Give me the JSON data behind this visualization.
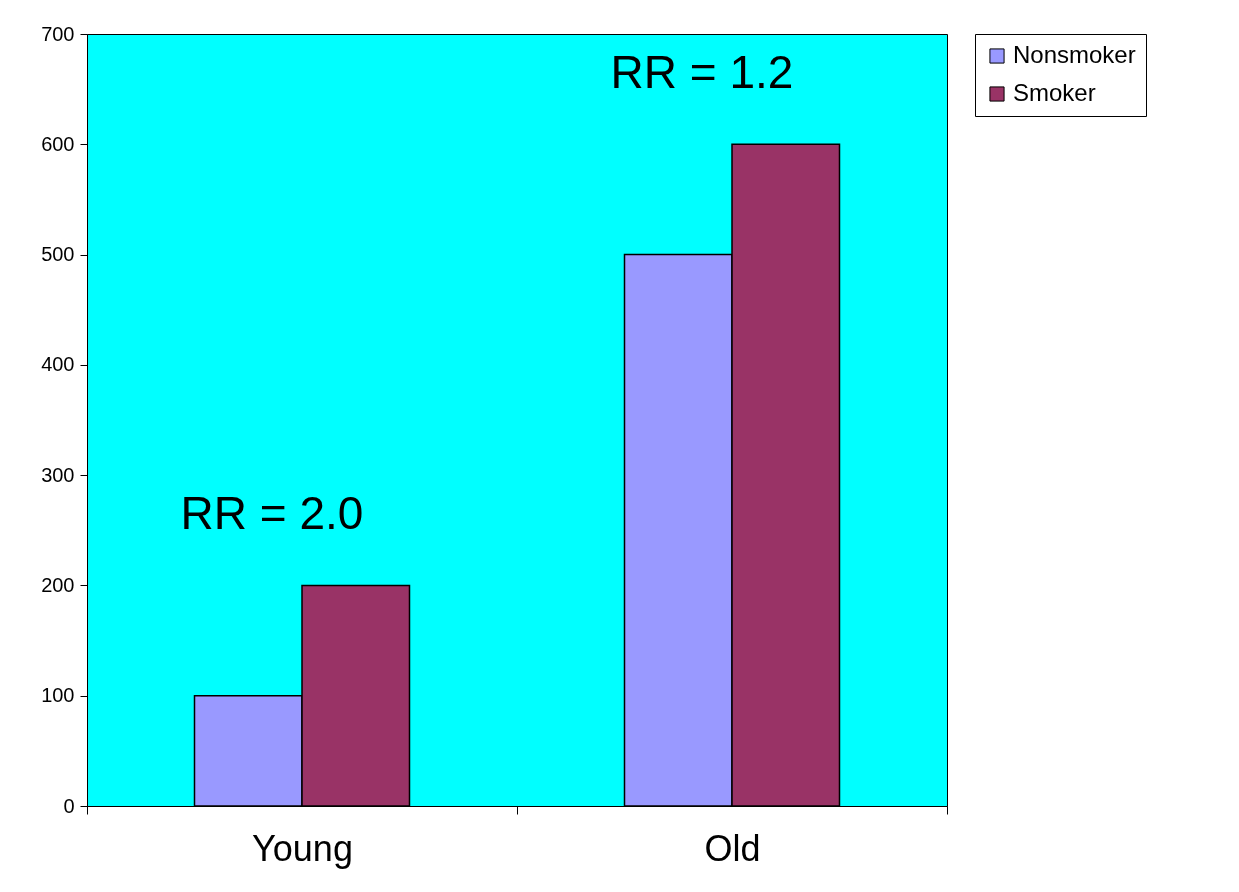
{
  "chart_data": {
    "type": "bar",
    "categories": [
      "Young",
      "Old"
    ],
    "series": [
      {
        "name": "Nonsmoker",
        "color": "#9999ff",
        "values": [
          100,
          500
        ]
      },
      {
        "name": "Smoker",
        "color": "#993366",
        "values": [
          200,
          600
        ]
      }
    ],
    "ylim": [
      0,
      700
    ],
    "yticks": [
      0,
      100,
      200,
      300,
      400,
      500,
      600,
      700
    ],
    "grid": false,
    "legend": "right",
    "annotations": [
      "RR = 2.0",
      "RR = 1.2"
    ]
  }
}
